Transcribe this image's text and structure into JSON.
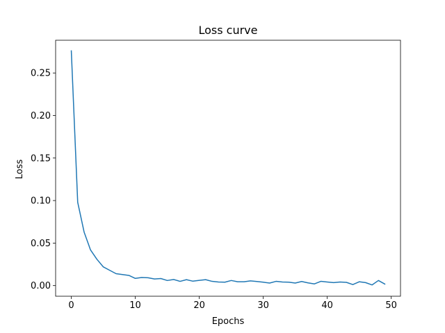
{
  "chart_data": {
    "type": "line",
    "title": "Loss curve",
    "xlabel": "Epochs",
    "ylabel": "Loss",
    "xlim": [
      -2.45,
      51.45
    ],
    "ylim": [
      -0.0125,
      0.2885
    ],
    "xticks": [
      0,
      10,
      20,
      30,
      40,
      50
    ],
    "xtick_labels": [
      "0",
      "10",
      "20",
      "30",
      "40",
      "50"
    ],
    "yticks": [
      0.0,
      0.05,
      0.1,
      0.15,
      0.2,
      0.25
    ],
    "ytick_labels": [
      "0.00",
      "0.05",
      "0.10",
      "0.15",
      "0.20",
      "0.25"
    ],
    "grid": false,
    "legend": "none",
    "series": [
      {
        "color": "#1f77b4",
        "x": [
          0,
          1,
          2,
          3,
          4,
          5,
          6,
          7,
          8,
          9,
          10,
          11,
          12,
          13,
          14,
          15,
          16,
          17,
          18,
          19,
          20,
          21,
          22,
          23,
          24,
          25,
          26,
          27,
          28,
          29,
          30,
          31,
          32,
          33,
          34,
          35,
          36,
          37,
          38,
          39,
          40,
          41,
          42,
          43,
          44,
          45,
          46,
          47,
          48,
          49
        ],
        "y": [
          0.276,
          0.098,
          0.063,
          0.042,
          0.031,
          0.022,
          0.018,
          0.014,
          0.013,
          0.012,
          0.0085,
          0.0095,
          0.0092,
          0.0078,
          0.0083,
          0.006,
          0.0072,
          0.005,
          0.007,
          0.0052,
          0.0062,
          0.007,
          0.005,
          0.0042,
          0.004,
          0.006,
          0.0045,
          0.0045,
          0.0055,
          0.0048,
          0.004,
          0.003,
          0.005,
          0.0042,
          0.004,
          0.003,
          0.0048,
          0.0032,
          0.002,
          0.005,
          0.0042,
          0.0035,
          0.0042,
          0.0038,
          0.0012,
          0.0045,
          0.0035,
          0.0008,
          0.006,
          0.0018
        ]
      }
    ]
  }
}
